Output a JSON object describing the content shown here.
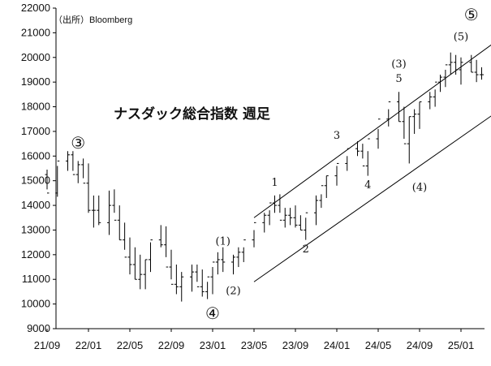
{
  "chart_data": {
    "type": "ohlc",
    "title": "ナスダック総合指数 週足",
    "source": "（出所）Bloomberg",
    "ylim": [
      9000,
      22000
    ],
    "y_ticks": [
      "9000",
      "10000",
      "11000",
      "12000",
      "13000",
      "14000",
      "15000",
      "16000",
      "17000",
      "18000",
      "19000",
      "20000",
      "21000",
      "22000"
    ],
    "x_ticks": [
      "21/09",
      "22/01",
      "22/05",
      "22/09",
      "23/01",
      "23/05",
      "23/09",
      "24/01",
      "24/05",
      "24/09",
      "25/01"
    ],
    "x_range_months": [
      "2021-09",
      "2025-03"
    ],
    "series": [
      {
        "date": "2021-09",
        "values": [
          15250,
          15450,
          14650
        ]
      },
      {
        "date": "2021-10",
        "values": [
          14500,
          15600,
          14350
        ]
      },
      {
        "date": "2021-11",
        "values": [
          15800,
          16200,
          15400
        ]
      },
      {
        "date": "2021-11b",
        "values": [
          16050,
          16200,
          15400
        ]
      },
      {
        "date": "2021-12",
        "values": [
          15250,
          15800,
          14900
        ]
      },
      {
        "date": "2021-12b",
        "values": [
          15650,
          15900,
          15100
        ]
      },
      {
        "date": "2022-01",
        "values": [
          14900,
          15700,
          13700
        ]
      },
      {
        "date": "2022-01b",
        "values": [
          13800,
          14400,
          13100
        ]
      },
      {
        "date": "2022-02",
        "values": [
          13800,
          14400,
          13200
        ]
      },
      {
        "date": "2022-03",
        "values": [
          13300,
          14600,
          12800
        ]
      },
      {
        "date": "2022-03b",
        "values": [
          14000,
          14650,
          13700
        ]
      },
      {
        "date": "2022-04",
        "values": [
          13400,
          14000,
          12600
        ]
      },
      {
        "date": "2022-04b",
        "values": [
          12600,
          13300,
          12200
        ]
      },
      {
        "date": "2022-05",
        "values": [
          11900,
          12700,
          11200
        ]
      },
      {
        "date": "2022-05b",
        "values": [
          11600,
          12300,
          11000
        ]
      },
      {
        "date": "2022-06",
        "values": [
          11000,
          12000,
          10600
        ]
      },
      {
        "date": "2022-06b",
        "values": [
          11200,
          11800,
          10600
        ]
      },
      {
        "date": "2022-07",
        "values": [
          11800,
          12500,
          11300
        ]
      },
      {
        "date": "2022-08",
        "values": [
          12600,
          13200,
          12300
        ]
      },
      {
        "date": "2022-08b",
        "values": [
          12400,
          13150,
          11900
        ]
      },
      {
        "date": "2022-09",
        "values": [
          11500,
          12200,
          11000
        ]
      },
      {
        "date": "2022-09b",
        "values": [
          10800,
          11600,
          10400
        ]
      },
      {
        "date": "2022-10",
        "values": [
          10700,
          11300,
          10100
        ]
      },
      {
        "date": "2022-11",
        "values": [
          11100,
          11600,
          10500
        ]
      },
      {
        "date": "2022-11b",
        "values": [
          11300,
          11600,
          10900
        ]
      },
      {
        "date": "2022-12",
        "values": [
          10700,
          11400,
          10300
        ]
      },
      {
        "date": "2022-12b",
        "values": [
          10500,
          10900,
          10200
        ]
      },
      {
        "date": "2023-01",
        "values": [
          11100,
          11500,
          10400
        ]
      },
      {
        "date": "2023-01b",
        "values": [
          11700,
          12100,
          11200
        ]
      },
      {
        "date": "2023-02",
        "values": [
          11800,
          12300,
          11300
        ]
      },
      {
        "date": "2023-03",
        "values": [
          11700,
          12000,
          11200
        ]
      },
      {
        "date": "2023-03b",
        "values": [
          11900,
          12300,
          11500
        ]
      },
      {
        "date": "2023-04",
        "values": [
          12100,
          12300,
          11700
        ]
      },
      {
        "date": "2023-05",
        "values": [
          12600,
          13000,
          12300
        ]
      },
      {
        "date": "2023-06",
        "values": [
          13300,
          13700,
          12900
        ]
      },
      {
        "date": "2023-06b",
        "values": [
          13600,
          13800,
          13200
        ]
      },
      {
        "date": "2023-07",
        "values": [
          14100,
          14400,
          13700
        ]
      },
      {
        "date": "2023-07b",
        "values": [
          14000,
          14450,
          13700
        ]
      },
      {
        "date": "2023-08",
        "values": [
          13400,
          13900,
          13100
        ]
      },
      {
        "date": "2023-08b",
        "values": [
          13600,
          13900,
          13200
        ]
      },
      {
        "date": "2023-09",
        "values": [
          13500,
          14000,
          13100
        ]
      },
      {
        "date": "2023-09b",
        "values": [
          13200,
          13600,
          13000
        ]
      },
      {
        "date": "2023-10",
        "values": [
          13000,
          13500,
          12600
        ]
      },
      {
        "date": "2023-11",
        "values": [
          13700,
          14400,
          13200
        ]
      },
      {
        "date": "2023-11b",
        "values": [
          14200,
          14450,
          13900
        ]
      },
      {
        "date": "2023-12",
        "values": [
          14800,
          15200,
          14300
        ]
      },
      {
        "date": "2024-01",
        "values": [
          15200,
          15600,
          14800
        ]
      },
      {
        "date": "2024-02",
        "values": [
          15700,
          16000,
          15400
        ]
      },
      {
        "date": "2024-03",
        "values": [
          16300,
          16600,
          16000
        ]
      },
      {
        "date": "2024-03b",
        "values": [
          16200,
          16500,
          15900
        ]
      },
      {
        "date": "2024-04",
        "values": [
          15600,
          16200,
          15200
        ]
      },
      {
        "date": "2024-05",
        "values": [
          16700,
          17100,
          16300
        ]
      },
      {
        "date": "2024-06",
        "values": [
          17500,
          17900,
          17200
        ]
      },
      {
        "date": "2024-07",
        "values": [
          18200,
          18600,
          17400
        ]
      },
      {
        "date": "2024-07b",
        "values": [
          17400,
          18000,
          16700
        ]
      },
      {
        "date": "2024-08",
        "values": [
          16500,
          17600,
          15700
        ]
      },
      {
        "date": "2024-08b",
        "values": [
          17600,
          17900,
          16900
        ]
      },
      {
        "date": "2024-09",
        "values": [
          17700,
          18200,
          17100
        ]
      },
      {
        "date": "2024-10",
        "values": [
          18200,
          18600,
          17900
        ]
      },
      {
        "date": "2024-10b",
        "values": [
          18400,
          18700,
          18000
        ]
      },
      {
        "date": "2024-11",
        "values": [
          19000,
          19300,
          18600
        ]
      },
      {
        "date": "2024-11b",
        "values": [
          19200,
          19500,
          18800
        ]
      },
      {
        "date": "2024-12",
        "values": [
          19700,
          20200,
          19300
        ]
      },
      {
        "date": "2024-12b",
        "values": [
          19800,
          20100,
          19300
        ]
      },
      {
        "date": "2025-01",
        "values": [
          19500,
          20000,
          18900
        ]
      },
      {
        "date": "2025-02",
        "values": [
          19800,
          20100,
          19400
        ]
      },
      {
        "date": "2025-02b",
        "values": [
          19400,
          19900,
          19000
        ]
      },
      {
        "date": "2025-03",
        "values": [
          19300,
          19600,
          19100
        ]
      }
    ],
    "annotations": [
      {
        "text": "③",
        "x": "2021-12",
        "y": 16300,
        "style": "big"
      },
      {
        "text": "④",
        "x": "2023-01",
        "y": 9400,
        "style": "big"
      },
      {
        "text": "⑤",
        "x": "2025-02",
        "y": 21500,
        "style": "big"
      },
      {
        "text": "(1)",
        "x": "2023-02",
        "y": 12400,
        "style": "wave"
      },
      {
        "text": "(2)",
        "x": "2023-03",
        "y": 10400,
        "style": "wave"
      },
      {
        "text": "(3)",
        "x": "2024-07",
        "y": 19600,
        "style": "wave"
      },
      {
        "text": "(4)",
        "x": "2024-09",
        "y": 14600,
        "style": "wave"
      },
      {
        "text": "(5)",
        "x": "2025-01",
        "y": 20700,
        "style": "wave"
      },
      {
        "text": "1",
        "x": "2023-07",
        "y": 14800,
        "style": "wave"
      },
      {
        "text": "2",
        "x": "2023-10",
        "y": 12100,
        "style": "wave"
      },
      {
        "text": "3",
        "x": "2024-01",
        "y": 16700,
        "style": "wave"
      },
      {
        "text": "4",
        "x": "2024-04",
        "y": 14700,
        "style": "wave"
      },
      {
        "text": "5",
        "x": "2024-07",
        "y": 19000,
        "style": "wave"
      }
    ],
    "channel_lines": [
      {
        "from": [
          "2023-05",
          13500
        ],
        "to": [
          "2025-03",
          20900
        ]
      },
      {
        "from": [
          "2023-05",
          10900
        ],
        "to": [
          "2025-03",
          18000
        ]
      }
    ],
    "grid": false
  }
}
